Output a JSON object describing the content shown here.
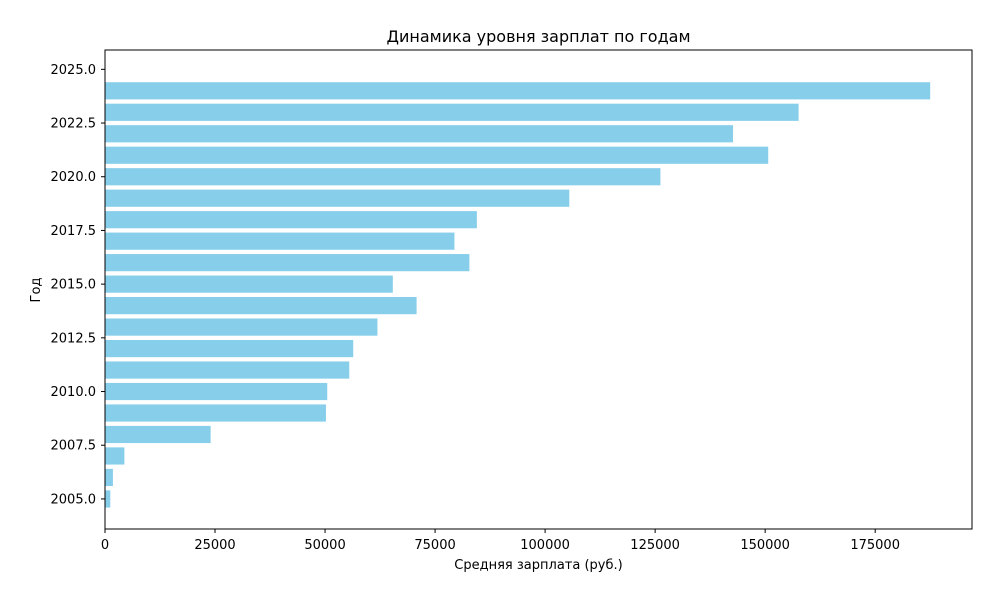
{
  "chart_data": {
    "type": "bar",
    "orientation": "horizontal",
    "title": "Динамика уровня зарплат по годам",
    "xlabel": "Средняя зарплата (руб.)",
    "ylabel": "Год",
    "bar_color": "#87ceeb",
    "xlim": [
      0,
      197000
    ],
    "ylim": [
      2003.6,
      2025.9
    ],
    "x_ticks": [
      0,
      25000,
      50000,
      75000,
      100000,
      125000,
      150000,
      175000
    ],
    "x_tick_labels": [
      "0",
      "25000",
      "50000",
      "75000",
      "100000",
      "125000",
      "150000",
      "175000"
    ],
    "y_ticks": [
      2005.0,
      2007.5,
      2010.0,
      2012.5,
      2015.0,
      2017.5,
      2020.0,
      2022.5,
      2025.0
    ],
    "y_tick_labels": [
      "2005.0",
      "2007.5",
      "2010.0",
      "2012.5",
      "2015.0",
      "2017.5",
      "2020.0",
      "2022.5",
      "2025.0"
    ],
    "grid": false,
    "legend": "none",
    "x": [
      2005,
      2006,
      2007,
      2008,
      2009,
      2010,
      2011,
      2012,
      2013,
      2014,
      2015,
      2016,
      2017,
      2018,
      2019,
      2020,
      2021,
      2022,
      2023,
      2024
    ],
    "values": [
      1200,
      1800,
      4400,
      24000,
      50200,
      50500,
      55500,
      56400,
      61900,
      70800,
      65400,
      82800,
      79400,
      84500,
      105500,
      126200,
      150700,
      142700,
      157600,
      187500
    ]
  }
}
